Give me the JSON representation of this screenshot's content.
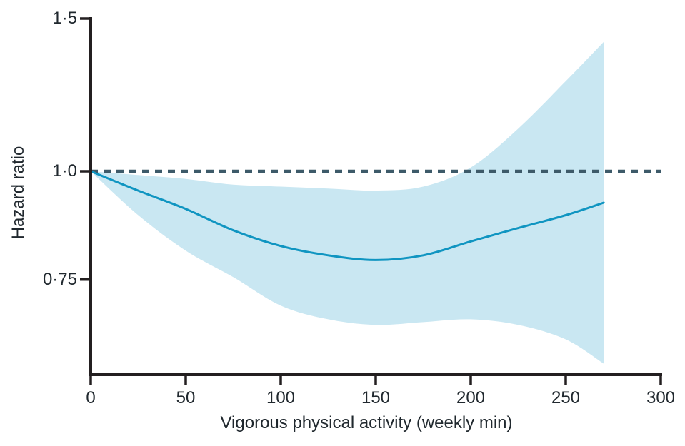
{
  "figure": {
    "background": "#ffffff"
  },
  "chart_data": {
    "type": "line",
    "title": "",
    "xlabel": "Vigorous physical activity (weekly min)",
    "ylabel": "Hazard ratio",
    "legend": "none",
    "grid": false,
    "x_axis": {
      "min": 0,
      "max": 300,
      "ticks": [
        0,
        50,
        100,
        150,
        200,
        250,
        300
      ]
    },
    "y_axis": {
      "scale": "log",
      "min": 0.58,
      "max": 1.5,
      "ticks": [
        {
          "value": 1.5,
          "label": "1·5"
        },
        {
          "value": 1.0,
          "label": "1·0"
        },
        {
          "value": 0.75,
          "label": "0·75"
        }
      ]
    },
    "reference_line": {
      "y": 1.0,
      "style": "dashed"
    },
    "x": [
      0,
      25,
      50,
      75,
      100,
      125,
      150,
      175,
      200,
      225,
      250,
      270
    ],
    "series": [
      {
        "name": "hazard-ratio",
        "role": "main-curve",
        "values": [
          1.0,
          0.95,
          0.905,
          0.855,
          0.82,
          0.8,
          0.79,
          0.8,
          0.83,
          0.86,
          0.89,
          0.92
        ]
      },
      {
        "name": "ci-upper",
        "role": "confidence-upper",
        "values": [
          1.0,
          0.99,
          0.98,
          0.965,
          0.96,
          0.955,
          0.95,
          0.96,
          1.01,
          1.12,
          1.27,
          1.41
        ]
      },
      {
        "name": "ci-lower",
        "role": "confidence-lower",
        "values": [
          1.0,
          0.89,
          0.81,
          0.755,
          0.7,
          0.675,
          0.665,
          0.67,
          0.675,
          0.665,
          0.64,
          0.6
        ]
      }
    ],
    "colors": {
      "line": "#1095c1",
      "band": "#c9e7f2",
      "reference": "#3d5a69",
      "axis": "#231f20",
      "text": "#20282e"
    }
  }
}
